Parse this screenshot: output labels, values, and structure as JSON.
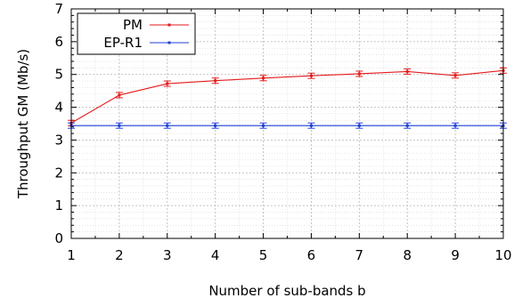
{
  "chart_data": {
    "type": "line",
    "xlabel": "Number of sub-bands  b",
    "ylabel": "Throughput GM (Mb/s)",
    "x": [
      1,
      2,
      3,
      4,
      5,
      6,
      7,
      8,
      9,
      10
    ],
    "xlim": [
      1,
      10
    ],
    "ylim": [
      0,
      7
    ],
    "xticks": [
      "1",
      "2",
      "3",
      "4",
      "5",
      "6",
      "7",
      "8",
      "9",
      "10"
    ],
    "yticks": [
      "0",
      "1",
      "2",
      "3",
      "4",
      "5",
      "6",
      "7"
    ],
    "grid": true,
    "legend_position": "top-left",
    "series": [
      {
        "name": "PM",
        "color": "#e41a1c",
        "values": [
          3.52,
          4.37,
          4.72,
          4.81,
          4.89,
          4.96,
          5.02,
          5.09,
          4.97,
          5.12
        ]
      },
      {
        "name": "EP-R1",
        "color": "#1f3fd6",
        "values": [
          3.44,
          3.44,
          3.44,
          3.44,
          3.44,
          3.44,
          3.44,
          3.44,
          3.44,
          3.44
        ]
      }
    ]
  }
}
